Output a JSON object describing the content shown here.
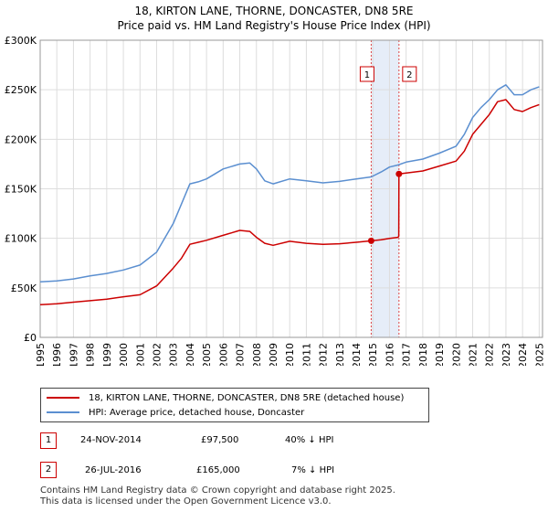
{
  "title": "18, KIRTON LANE, THORNE, DONCASTER, DN8 5RE",
  "subtitle": "Price paid vs. HM Land Registry's House Price Index (HPI)",
  "chart_data": {
    "type": "line",
    "title": "18, KIRTON LANE, THORNE, DONCASTER, DN8 5RE",
    "subtitle": "Price paid vs. HM Land Registry's House Price Index (HPI)",
    "xlim": [
      1995,
      2025.2
    ],
    "ylim": [
      0,
      300000
    ],
    "y_ticks": [
      {
        "value": 0,
        "label": "£0"
      },
      {
        "value": 50000,
        "label": "£50K"
      },
      {
        "value": 100000,
        "label": "£100K"
      },
      {
        "value": 150000,
        "label": "£150K"
      },
      {
        "value": 200000,
        "label": "£200K"
      },
      {
        "value": 250000,
        "label": "£250K"
      },
      {
        "value": 300000,
        "label": "£300K"
      }
    ],
    "x_ticks": [
      "1995",
      "1996",
      "1997",
      "1998",
      "1999",
      "2000",
      "2001",
      "2002",
      "2003",
      "2004",
      "2005",
      "2006",
      "2007",
      "2008",
      "2009",
      "2010",
      "2011",
      "2012",
      "2013",
      "2014",
      "2015",
      "2016",
      "2017",
      "2018",
      "2019",
      "2020",
      "2021",
      "2022",
      "2023",
      "2024",
      "2025"
    ],
    "grid": true,
    "shaded_band": [
      2014.9,
      2016.57
    ],
    "series": [
      {
        "name": "18, KIRTON LANE, THORNE, DONCASTER, DN8 5RE (detached house)",
        "color": "#cc0000",
        "x": [
          1995,
          1996,
          1997,
          1998,
          1999,
          2000,
          2001,
          2002,
          2003,
          2003.5,
          2004,
          2004.5,
          2005,
          2006,
          2007,
          2007.6,
          2008,
          2008.5,
          2009,
          2010,
          2011,
          2012,
          2013,
          2014,
          2014.9,
          2015.5,
          2016,
          2016.5,
          2016.56,
          2016.57,
          2017,
          2018,
          2019,
          2020,
          2020.5,
          2021,
          2021.5,
          2022,
          2022.5,
          2023,
          2023.5,
          2024,
          2024.5,
          2025
        ],
        "values": [
          33000,
          34000,
          35500,
          37000,
          38500,
          41000,
          43000,
          52000,
          70000,
          80000,
          94000,
          96000,
          98000,
          103000,
          108000,
          107000,
          101000,
          95000,
          93000,
          97000,
          95000,
          94000,
          94500,
          96000,
          97500,
          98500,
          100000,
          101000,
          102000,
          165000,
          166000,
          168000,
          173000,
          178000,
          188000,
          205000,
          215000,
          225000,
          238000,
          240000,
          230000,
          228000,
          232000,
          235000
        ]
      },
      {
        "name": "HPI: Average price, detached house, Doncaster",
        "color": "#5b8fd0",
        "x": [
          1995,
          1996,
          1997,
          1998,
          1999,
          2000,
          2001,
          2002,
          2003,
          2003.5,
          2004,
          2004.5,
          2005,
          2006,
          2007,
          2007.6,
          2008,
          2008.5,
          2009,
          2010,
          2011,
          2012,
          2013,
          2014,
          2014.9,
          2015.5,
          2016,
          2016.5,
          2017,
          2018,
          2019,
          2020,
          2020.5,
          2021,
          2021.5,
          2022,
          2022.5,
          2023,
          2023.5,
          2024,
          2024.5,
          2025
        ],
        "values": [
          56000,
          57000,
          59000,
          62000,
          64500,
          68000,
          73000,
          86000,
          115000,
          135000,
          155000,
          157000,
          160000,
          170000,
          175000,
          176000,
          170000,
          158000,
          155000,
          160000,
          158000,
          156000,
          157500,
          160000,
          162000,
          167000,
          172000,
          174000,
          177000,
          180000,
          186000,
          193000,
          205000,
          222000,
          232000,
          240000,
          250000,
          255000,
          245000,
          245000,
          250000,
          253000
        ]
      }
    ],
    "sales": [
      {
        "marker": "1",
        "x": 2014.9,
        "value": 97500
      },
      {
        "marker": "2",
        "x": 2016.57,
        "value": 165000
      }
    ]
  },
  "legend": {
    "items": [
      {
        "label": "18, KIRTON LANE, THORNE, DONCASTER, DN8 5RE (detached house)",
        "color": "#cc0000"
      },
      {
        "label": "HPI: Average price, detached house, Doncaster",
        "color": "#5b8fd0"
      }
    ]
  },
  "transactions": [
    {
      "marker": "1",
      "date": "24-NOV-2014",
      "price": "£97,500",
      "hpi": "40% ↓ HPI"
    },
    {
      "marker": "2",
      "date": "26-JUL-2016",
      "price": "£165,000",
      "hpi": "7% ↓ HPI"
    }
  ],
  "footer": {
    "line1": "Contains HM Land Registry data © Crown copyright and database right 2025.",
    "line2": "This data is licensed under the Open Government Licence v3.0."
  }
}
